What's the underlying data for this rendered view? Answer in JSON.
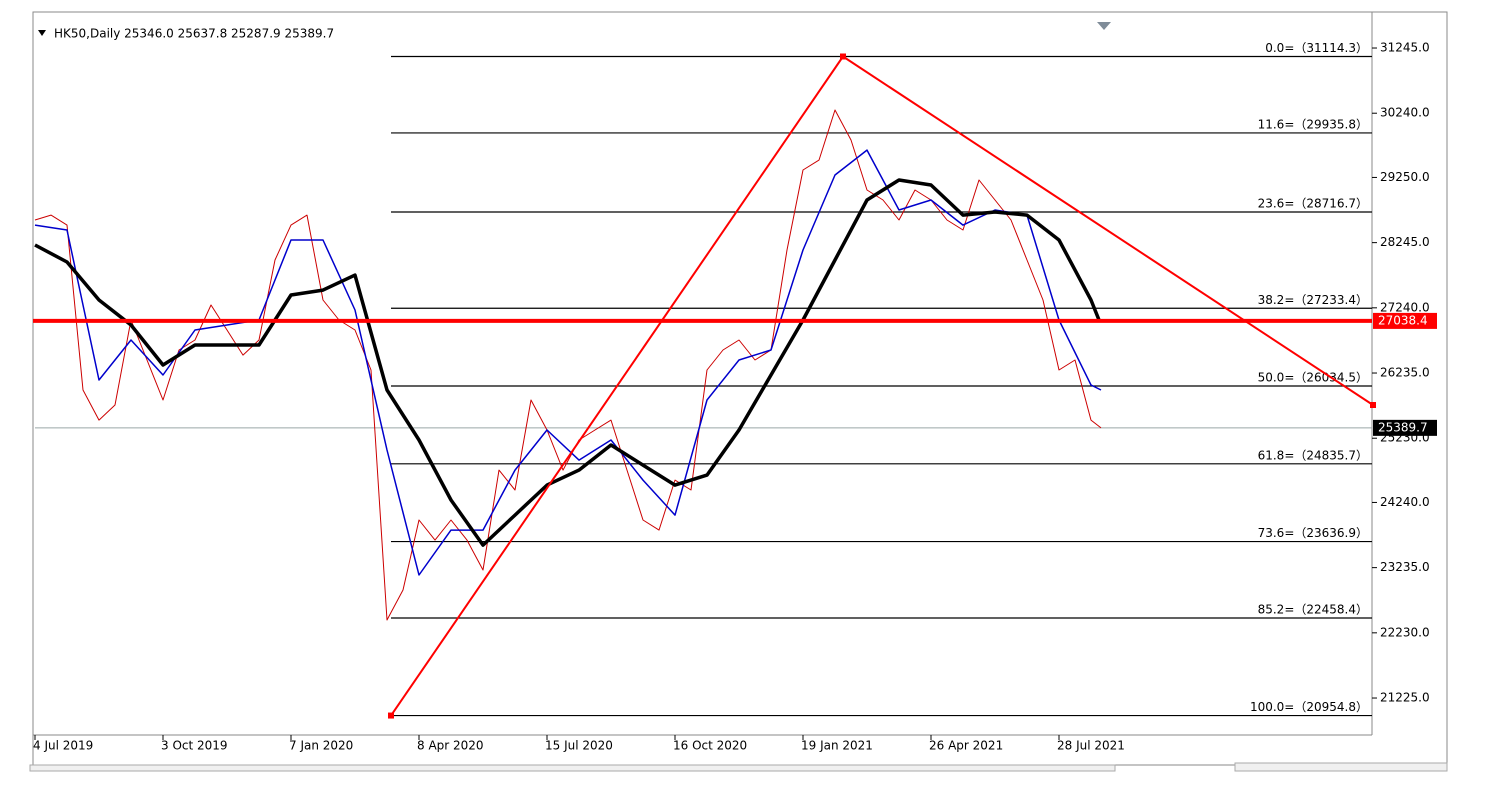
{
  "chart_data": {
    "type": "line",
    "title": "HK50,Daily  25346.0 25637.8 25287.9 25389.7",
    "xlim": [
      0,
      669
    ],
    "ylim": [
      20655,
      31754
    ],
    "xticks": [
      {
        "value": 0,
        "label": "4 Jul 2019"
      },
      {
        "value": 64,
        "label": "3 Oct 2019"
      },
      {
        "value": 128,
        "label": "7 Jan 2020"
      },
      {
        "value": 192,
        "label": "8 Apr 2020"
      },
      {
        "value": 256,
        "label": "15 Jul 2020"
      },
      {
        "value": 320,
        "label": "16 Oct 2020"
      },
      {
        "value": 384,
        "label": "19 Jan 2021"
      },
      {
        "value": 448,
        "label": "26 Apr 2021"
      },
      {
        "value": 512,
        "label": "28 Jul 2021"
      }
    ],
    "yticks": [
      {
        "value": 31245,
        "label": "31245.0"
      },
      {
        "value": 30240,
        "label": "30240.0"
      },
      {
        "value": 29250,
        "label": "29250.0"
      },
      {
        "value": 28245,
        "label": "28245.0"
      },
      {
        "value": 27240,
        "label": "27240.0"
      },
      {
        "value": 26235,
        "label": "26235.0"
      },
      {
        "value": 25230,
        "label": "25230.0"
      },
      {
        "value": 24240,
        "label": "24240.0"
      },
      {
        "value": 23235,
        "label": "23235.0"
      },
      {
        "value": 22230,
        "label": "22230.0"
      },
      {
        "value": 21225,
        "label": "21225.0"
      }
    ],
    "series": [
      {
        "color": "#cc0000",
        "width": 1,
        "x": [
          0,
          8,
          16,
          24,
          32,
          40,
          48,
          56,
          64,
          72,
          80,
          88,
          96,
          104,
          112,
          120,
          128,
          136,
          144,
          152,
          160,
          168,
          176,
          184,
          192,
          200,
          208,
          216,
          224,
          232,
          240,
          248,
          256,
          264,
          272,
          280,
          288,
          296,
          304,
          312,
          320,
          328,
          336,
          344,
          352,
          360,
          368,
          376,
          384,
          392,
          400,
          408,
          416,
          424,
          432,
          440,
          448,
          456,
          464,
          472,
          480,
          488,
          496,
          504,
          512,
          520,
          528,
          533
        ],
        "values": [
          28594,
          28670,
          28516,
          25973,
          25510,
          25742,
          27052,
          26435,
          25819,
          26590,
          26744,
          27283,
          26898,
          26512,
          26744,
          27977,
          28516,
          28670,
          27360,
          27052,
          26898,
          26281,
          22427,
          22890,
          23969,
          23660,
          23969,
          23660,
          23198,
          24739,
          24431,
          25819,
          25356,
          24739,
          25202,
          25356,
          25510,
          24739,
          23969,
          23814,
          24585,
          24431,
          26281,
          26590,
          26744,
          26435,
          26590,
          28131,
          29364,
          29518,
          30289,
          29827,
          29056,
          28902,
          28594,
          29056,
          28902,
          28594,
          28439,
          29210,
          28902,
          28594,
          27977,
          27360,
          26281,
          26435,
          25510,
          25389.7
        ]
      },
      {
        "color": "#0000cc",
        "width": 1.5,
        "x": [
          0,
          16,
          32,
          48,
          64,
          80,
          96,
          112,
          128,
          144,
          160,
          176,
          192,
          208,
          224,
          240,
          256,
          272,
          288,
          304,
          320,
          336,
          352,
          368,
          384,
          400,
          416,
          432,
          448,
          464,
          480,
          496,
          512,
          528,
          533
        ],
        "values": [
          28516,
          28439,
          26127,
          26744,
          26204,
          26898,
          26975,
          27052,
          28285,
          28285,
          27206,
          25048,
          23121,
          23814,
          23814,
          24739,
          25356,
          24893,
          25202,
          24585,
          24045,
          25819,
          26435,
          26590,
          28131,
          29287,
          29672,
          28748,
          28902,
          28516,
          28748,
          28670,
          27052,
          26050,
          25973
        ]
      },
      {
        "color": "#000000",
        "width": 3.5,
        "x": [
          0,
          16,
          32,
          48,
          64,
          80,
          96,
          112,
          128,
          144,
          160,
          176,
          192,
          208,
          224,
          240,
          256,
          272,
          288,
          304,
          320,
          336,
          352,
          368,
          384,
          400,
          416,
          432,
          448,
          464,
          480,
          496,
          512,
          528,
          532
        ],
        "values": [
          28208,
          27946,
          27360,
          26975,
          26358,
          26667,
          26667,
          26667,
          27437,
          27514,
          27745,
          25973,
          25202,
          24277,
          23583,
          24045,
          24508,
          24739,
          25125,
          24816,
          24508,
          24662,
          25356,
          26204,
          27052,
          27977,
          28902,
          29210,
          29133,
          28670,
          28717,
          28670,
          28285,
          27360,
          27052
        ]
      }
    ],
    "trendlines": [
      {
        "color": "#ff0000",
        "x": [
          178,
          404
        ],
        "values": [
          20954.8,
          31114.3
        ]
      },
      {
        "color": "#ff0000",
        "x": [
          404,
          669
        ],
        "values": [
          31114.3,
          25742
        ]
      }
    ],
    "fib_levels": [
      {
        "value": 31114.3,
        "label": "0.0=（31114.3）"
      },
      {
        "value": 29935.8,
        "label": "11.6=（29935.8）"
      },
      {
        "value": 28716.7,
        "label": "23.6=（28716.7）"
      },
      {
        "value": 27233.4,
        "label": "38.2=（27233.4）"
      },
      {
        "value": 26034.5,
        "label": "50.0=（26034.5）"
      },
      {
        "value": 24835.7,
        "label": "61.8=（24835.7）"
      },
      {
        "value": 23636.9,
        "label": "73.6=（23636.9）"
      },
      {
        "value": 22458.4,
        "label": "85.2=（22458.4）"
      },
      {
        "value": 20954.8,
        "label": "100.0=（20954.8）"
      }
    ],
    "fib_start": 178,
    "hline": {
      "value": 27038.4,
      "label": "27038.4",
      "color": "#ff0000"
    },
    "price_line": {
      "value": 25389.7,
      "label": "25389.7",
      "color": "#9aa6a6"
    }
  }
}
